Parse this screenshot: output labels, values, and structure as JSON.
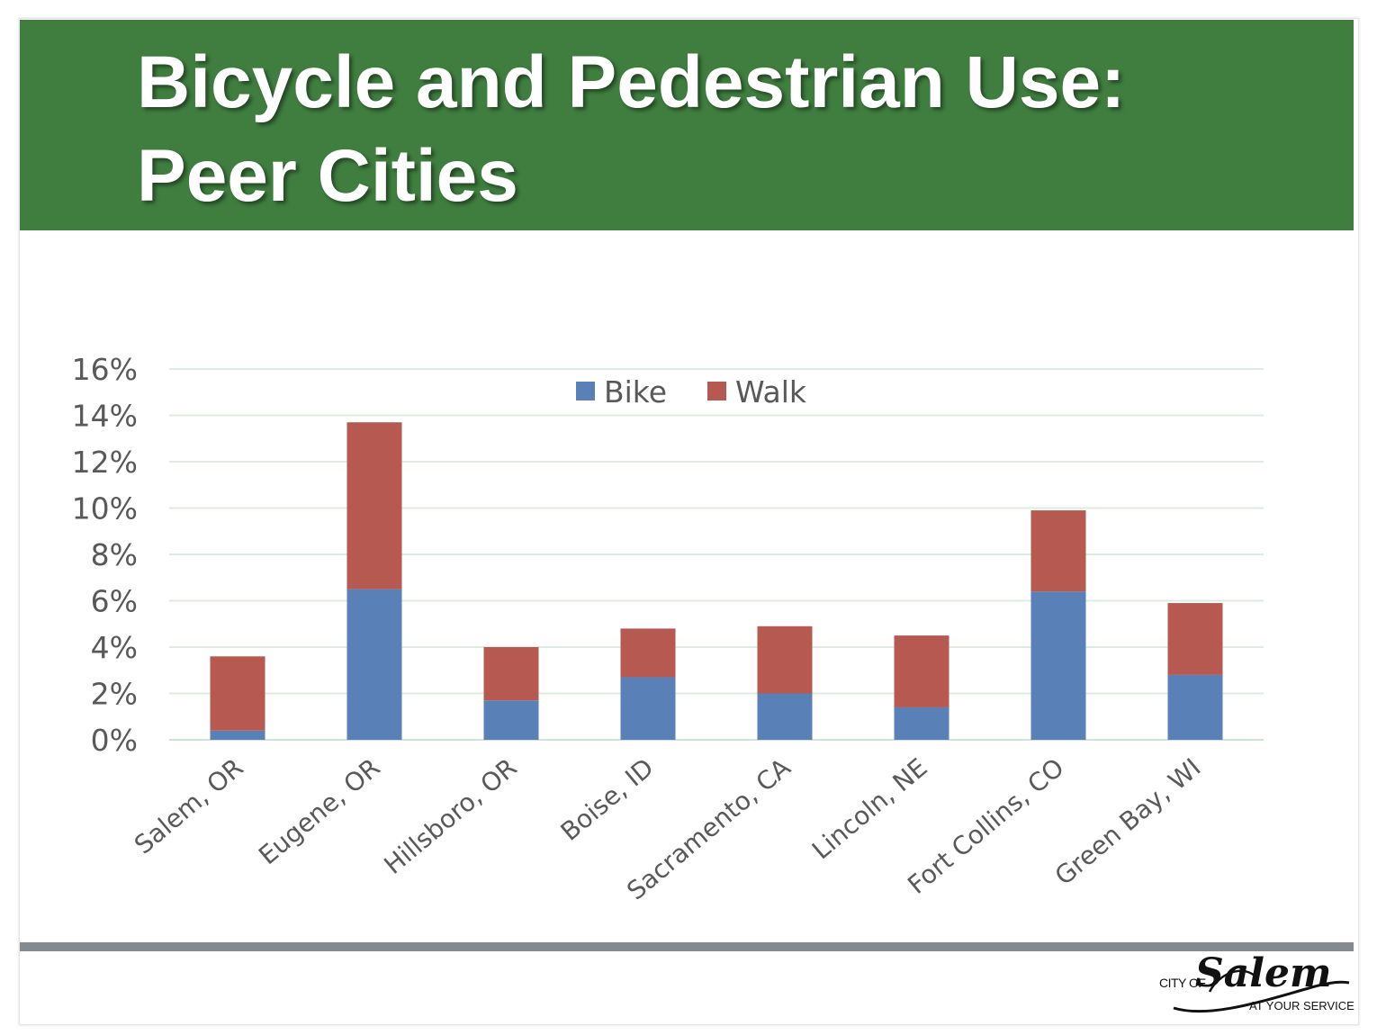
{
  "slide": {
    "title_line1": "Bicycle and Pedestrian Use:",
    "title_line2": "Peer Cities",
    "header_color": "#3f7e3f"
  },
  "logo": {
    "prefix": "CITY OF",
    "script": "Salem",
    "tagline": "AT YOUR SERVICE"
  },
  "chart_data": {
    "type": "bar",
    "stacked": true,
    "title": "",
    "xlabel": "",
    "ylabel": "",
    "categories": [
      "Salem, OR",
      "Eugene, OR",
      "Hillsboro, OR",
      "Boise, ID",
      "Sacramento, CA",
      "Lincoln, NE",
      "Fort Collins, CO",
      "Green Bay, WI"
    ],
    "series": [
      {
        "name": "Bike",
        "color": "#5a80b8",
        "values": [
          0.4,
          6.5,
          1.7,
          2.7,
          2.0,
          1.4,
          6.4,
          2.8
        ]
      },
      {
        "name": "Walk",
        "color": "#b65951",
        "values": [
          3.2,
          7.2,
          2.3,
          2.1,
          2.9,
          3.1,
          3.5,
          3.1
        ]
      }
    ],
    "ylim": [
      0,
      16
    ],
    "yticks": [
      "0%",
      "2%",
      "4%",
      "6%",
      "8%",
      "10%",
      "12%",
      "14%",
      "16%"
    ],
    "ytick_values": [
      0,
      2,
      4,
      6,
      8,
      10,
      12,
      14,
      16
    ],
    "grid": true,
    "legend": "top-center"
  }
}
